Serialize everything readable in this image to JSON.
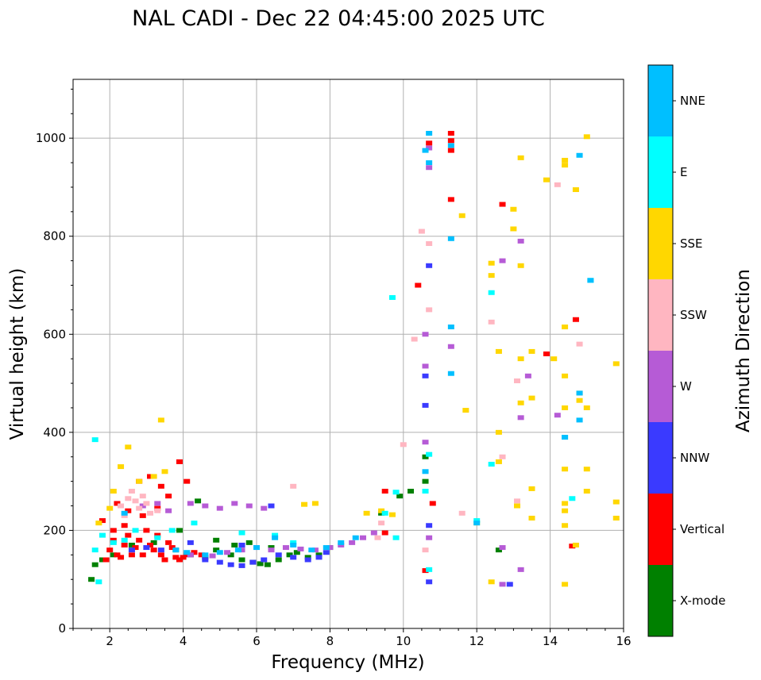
{
  "chart_data": {
    "type": "scatter",
    "title": "NAL CADI - Dec 22 04:45:00 2025 UTC",
    "xlabel": "Frequency (MHz)",
    "ylabel": "Virtual height (km)",
    "xlim": [
      1.0,
      16.0
    ],
    "ylim": [
      0,
      1120
    ],
    "xticks": [
      2,
      4,
      6,
      8,
      10,
      12,
      14,
      16
    ],
    "yticks": [
      0,
      200,
      400,
      600,
      800,
      1000
    ],
    "grid": true,
    "colorbar": {
      "label": "Azimuth Direction",
      "categories": [
        {
          "name": "X-mode",
          "color": "#008000"
        },
        {
          "name": "Vertical",
          "color": "#ff0000"
        },
        {
          "name": "NNW",
          "color": "#3a3aff"
        },
        {
          "name": "W",
          "color": "#b65bd6"
        },
        {
          "name": "SSW",
          "color": "#ffb6c1"
        },
        {
          "name": "SSE",
          "color": "#ffd700"
        },
        {
          "name": "E",
          "color": "#00ffff"
        },
        {
          "name": "NNE",
          "color": "#00bfff"
        }
      ]
    },
    "series": [
      {
        "name": "X-mode",
        "points": [
          [
            1.5,
            100
          ],
          [
            1.6,
            130
          ],
          [
            1.8,
            140
          ],
          [
            2.1,
            150
          ],
          [
            2.6,
            170
          ],
          [
            3.2,
            175
          ],
          [
            3.8,
            160
          ],
          [
            4.2,
            150
          ],
          [
            4.6,
            145
          ],
          [
            4.9,
            160
          ],
          [
            5.3,
            150
          ],
          [
            5.6,
            140
          ],
          [
            5.9,
            135
          ],
          [
            6.1,
            132
          ],
          [
            6.3,
            130
          ],
          [
            6.6,
            140
          ],
          [
            6.9,
            150
          ],
          [
            7.1,
            155
          ],
          [
            7.4,
            145
          ],
          [
            7.7,
            150
          ],
          [
            8.0,
            165
          ],
          [
            3.9,
            200
          ],
          [
            4.4,
            260
          ],
          [
            4.9,
            180
          ],
          [
            5.4,
            170
          ],
          [
            5.8,
            175
          ],
          [
            6.4,
            165
          ],
          [
            9.4,
            235
          ],
          [
            9.9,
            270
          ],
          [
            10.2,
            280
          ],
          [
            10.6,
            300
          ],
          [
            10.6,
            350
          ],
          [
            12.6,
            160
          ]
        ]
      },
      {
        "name": "Vertical",
        "points": [
          [
            1.9,
            140
          ],
          [
            2.0,
            160
          ],
          [
            2.1,
            180
          ],
          [
            2.2,
            150
          ],
          [
            2.3,
            145
          ],
          [
            2.4,
            170
          ],
          [
            2.5,
            190
          ],
          [
            2.6,
            150
          ],
          [
            2.7,
            165
          ],
          [
            2.8,
            180
          ],
          [
            2.9,
            150
          ],
          [
            3.0,
            200
          ],
          [
            3.1,
            170
          ],
          [
            3.2,
            160
          ],
          [
            3.3,
            190
          ],
          [
            3.4,
            150
          ],
          [
            3.5,
            140
          ],
          [
            3.6,
            175
          ],
          [
            3.7,
            165
          ],
          [
            3.8,
            145
          ],
          [
            3.9,
            140
          ],
          [
            4.0,
            145
          ],
          [
            4.1,
            150
          ],
          [
            4.3,
            155
          ],
          [
            4.5,
            150
          ],
          [
            2.2,
            255
          ],
          [
            2.5,
            240
          ],
          [
            2.8,
            300
          ],
          [
            3.1,
            310
          ],
          [
            3.4,
            290
          ],
          [
            3.6,
            270
          ],
          [
            3.9,
            340
          ],
          [
            4.1,
            300
          ],
          [
            1.8,
            220
          ],
          [
            2.1,
            200
          ],
          [
            2.4,
            210
          ],
          [
            2.9,
            230
          ],
          [
            3.3,
            245
          ],
          [
            9.5,
            195
          ],
          [
            9.5,
            280
          ],
          [
            10.7,
            990
          ],
          [
            10.6,
            118
          ],
          [
            10.8,
            255
          ],
          [
            11.3,
            1010
          ],
          [
            11.3,
            995
          ],
          [
            11.3,
            975
          ],
          [
            11.3,
            875
          ],
          [
            10.4,
            700
          ],
          [
            12.7,
            865
          ],
          [
            14.7,
            630
          ],
          [
            13.9,
            560
          ],
          [
            14.6,
            168
          ]
        ]
      },
      {
        "name": "NNW",
        "points": [
          [
            4.6,
            140
          ],
          [
            5.0,
            135
          ],
          [
            5.3,
            130
          ],
          [
            5.6,
            128
          ],
          [
            5.9,
            135
          ],
          [
            6.2,
            140
          ],
          [
            6.6,
            150
          ],
          [
            7.0,
            145
          ],
          [
            7.4,
            140
          ],
          [
            7.7,
            145
          ],
          [
            7.9,
            155
          ],
          [
            2.6,
            160
          ],
          [
            3.0,
            165
          ],
          [
            3.4,
            160
          ],
          [
            6.4,
            250
          ],
          [
            10.6,
            455
          ],
          [
            10.6,
            515
          ],
          [
            10.7,
            740
          ],
          [
            10.7,
            210
          ],
          [
            10.7,
            95
          ],
          [
            12.9,
            90
          ],
          [
            4.2,
            175
          ],
          [
            5.6,
            170
          ]
        ]
      },
      {
        "name": "W",
        "points": [
          [
            4.2,
            150
          ],
          [
            4.8,
            148
          ],
          [
            5.2,
            155
          ],
          [
            5.6,
            160
          ],
          [
            6.0,
            165
          ],
          [
            6.4,
            160
          ],
          [
            6.8,
            165
          ],
          [
            7.2,
            162
          ],
          [
            7.6,
            160
          ],
          [
            8.0,
            165
          ],
          [
            8.3,
            170
          ],
          [
            8.6,
            175
          ],
          [
            8.9,
            185
          ],
          [
            9.2,
            195
          ],
          [
            4.2,
            255
          ],
          [
            4.6,
            250
          ],
          [
            5.0,
            245
          ],
          [
            5.4,
            255
          ],
          [
            5.8,
            250
          ],
          [
            6.2,
            245
          ],
          [
            2.9,
            250
          ],
          [
            3.3,
            255
          ],
          [
            3.6,
            240
          ],
          [
            10.6,
            380
          ],
          [
            10.6,
            535
          ],
          [
            10.6,
            600
          ],
          [
            10.7,
            980
          ],
          [
            10.7,
            940
          ],
          [
            10.7,
            185
          ],
          [
            11.3,
            575
          ],
          [
            12.7,
            750
          ],
          [
            13.2,
            790
          ],
          [
            13.2,
            430
          ],
          [
            13.4,
            515
          ],
          [
            14.2,
            435
          ],
          [
            12.7,
            165
          ],
          [
            13.2,
            120
          ],
          [
            12.7,
            90
          ]
        ]
      },
      {
        "name": "SSW",
        "points": [
          [
            2.3,
            250
          ],
          [
            2.5,
            265
          ],
          [
            2.6,
            280
          ],
          [
            2.7,
            260
          ],
          [
            2.8,
            245
          ],
          [
            2.9,
            270
          ],
          [
            3.0,
            255
          ],
          [
            3.1,
            235
          ],
          [
            2.4,
            230
          ],
          [
            3.3,
            240
          ],
          [
            7.0,
            290
          ],
          [
            9.4,
            215
          ],
          [
            9.3,
            185
          ],
          [
            10.0,
            375
          ],
          [
            10.7,
            650
          ],
          [
            10.6,
            160
          ],
          [
            10.5,
            810
          ],
          [
            10.7,
            785
          ],
          [
            10.3,
            590
          ],
          [
            12.4,
            625
          ],
          [
            13.1,
            505
          ],
          [
            14.2,
            905
          ],
          [
            14.8,
            580
          ],
          [
            12.7,
            350
          ],
          [
            13.1,
            260
          ],
          [
            11.6,
            235
          ]
        ]
      },
      {
        "name": "SSE",
        "points": [
          [
            1.7,
            215
          ],
          [
            2.0,
            245
          ],
          [
            2.1,
            280
          ],
          [
            2.3,
            330
          ],
          [
            2.5,
            370
          ],
          [
            2.8,
            300
          ],
          [
            3.2,
            310
          ],
          [
            3.5,
            320
          ],
          [
            3.4,
            425
          ],
          [
            7.3,
            253
          ],
          [
            7.6,
            255
          ],
          [
            9.0,
            235
          ],
          [
            9.4,
            240
          ],
          [
            9.7,
            232
          ],
          [
            11.6,
            842
          ],
          [
            11.7,
            445
          ],
          [
            12.4,
            745
          ],
          [
            12.4,
            720
          ],
          [
            12.6,
            565
          ],
          [
            12.6,
            400
          ],
          [
            12.6,
            340
          ],
          [
            13.0,
            855
          ],
          [
            13.0,
            815
          ],
          [
            13.2,
            960
          ],
          [
            13.2,
            740
          ],
          [
            13.2,
            550
          ],
          [
            13.2,
            460
          ],
          [
            13.5,
            565
          ],
          [
            13.5,
            470
          ],
          [
            13.5,
            285
          ],
          [
            13.5,
            225
          ],
          [
            13.1,
            250
          ],
          [
            12.4,
            95
          ],
          [
            13.9,
            915
          ],
          [
            14.1,
            550
          ],
          [
            14.4,
            955
          ],
          [
            14.4,
            945
          ],
          [
            14.4,
            615
          ],
          [
            14.4,
            515
          ],
          [
            14.4,
            450
          ],
          [
            14.4,
            325
          ],
          [
            14.4,
            255
          ],
          [
            14.4,
            240
          ],
          [
            14.4,
            210
          ],
          [
            14.4,
            90
          ],
          [
            14.7,
            895
          ],
          [
            14.7,
            170
          ],
          [
            14.8,
            480
          ],
          [
            14.8,
            465
          ],
          [
            15.0,
            1003
          ],
          [
            15.0,
            450
          ],
          [
            15.0,
            325
          ],
          [
            15.0,
            280
          ],
          [
            15.8,
            540
          ],
          [
            15.8,
            258
          ],
          [
            15.8,
            225
          ],
          [
            12.0,
            215
          ]
        ]
      },
      {
        "name": "E",
        "points": [
          [
            1.6,
            160
          ],
          [
            1.8,
            190
          ],
          [
            2.1,
            175
          ],
          [
            2.4,
            180
          ],
          [
            2.7,
            200
          ],
          [
            3.3,
            185
          ],
          [
            3.7,
            200
          ],
          [
            4.3,
            215
          ],
          [
            5.6,
            195
          ],
          [
            6.5,
            190
          ],
          [
            7.0,
            175
          ],
          [
            1.6,
            385
          ],
          [
            1.7,
            95
          ],
          [
            9.5,
            235
          ],
          [
            9.8,
            278
          ],
          [
            9.7,
            675
          ],
          [
            9.8,
            185
          ],
          [
            10.7,
            355
          ],
          [
            10.6,
            280
          ],
          [
            10.7,
            120
          ],
          [
            12.0,
            220
          ],
          [
            12.4,
            685
          ],
          [
            12.4,
            335
          ],
          [
            14.4,
            390
          ],
          [
            14.6,
            265
          ],
          [
            15.1,
            710
          ]
        ]
      },
      {
        "name": "NNE",
        "points": [
          [
            3.8,
            160
          ],
          [
            4.1,
            155
          ],
          [
            4.6,
            150
          ],
          [
            5.0,
            155
          ],
          [
            5.5,
            160
          ],
          [
            6.0,
            165
          ],
          [
            6.5,
            185
          ],
          [
            7.0,
            170
          ],
          [
            7.5,
            160
          ],
          [
            7.9,
            165
          ],
          [
            8.3,
            175
          ],
          [
            8.7,
            185
          ],
          [
            10.7,
            1010
          ],
          [
            10.6,
            975
          ],
          [
            10.7,
            950
          ],
          [
            10.6,
            320
          ],
          [
            11.3,
            985
          ],
          [
            11.3,
            795
          ],
          [
            11.3,
            615
          ],
          [
            11.3,
            520
          ],
          [
            12.0,
            215
          ],
          [
            14.4,
            390
          ],
          [
            14.8,
            965
          ],
          [
            14.8,
            480
          ],
          [
            14.8,
            425
          ],
          [
            15.1,
            710
          ],
          [
            2.4,
            235
          ]
        ]
      }
    ]
  }
}
